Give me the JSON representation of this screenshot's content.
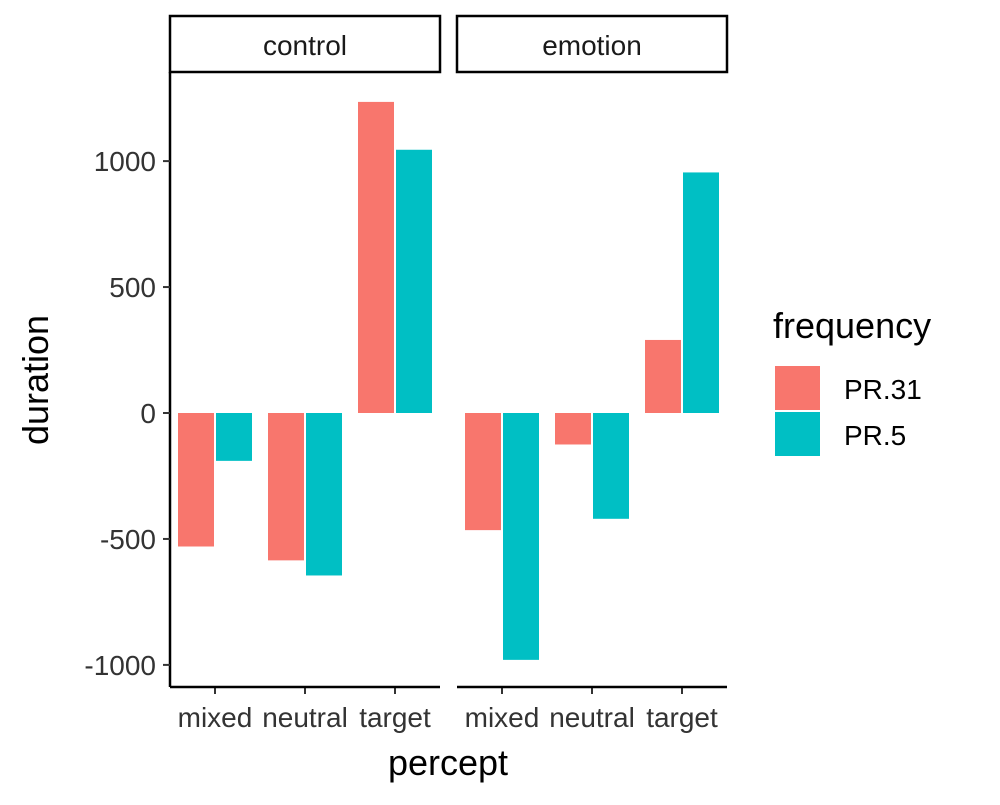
{
  "chart_data": {
    "type": "bar",
    "facets": [
      "control",
      "emotion"
    ],
    "categories": [
      "mixed",
      "neutral",
      "target"
    ],
    "xlabel": "percept",
    "ylabel": "duration",
    "yticks": [
      1000,
      500,
      0,
      -500,
      -1000
    ],
    "ytick_labels": [
      "1000",
      "500",
      "0",
      "-500",
      "-1000"
    ],
    "ylim": [
      -1080,
      1350
    ],
    "grid": false,
    "legend": {
      "title": "frequency",
      "position": "right"
    },
    "series": [
      {
        "name": "PR.31",
        "color": "#F8766D",
        "values": {
          "control": [
            -530,
            -585,
            1235
          ],
          "emotion": [
            -465,
            -125,
            290
          ]
        }
      },
      {
        "name": "PR.5",
        "color": "#00BFC4",
        "values": {
          "control": [
            -190,
            -645,
            1045
          ],
          "emotion": [
            -980,
            -420,
            955
          ]
        }
      }
    ]
  }
}
